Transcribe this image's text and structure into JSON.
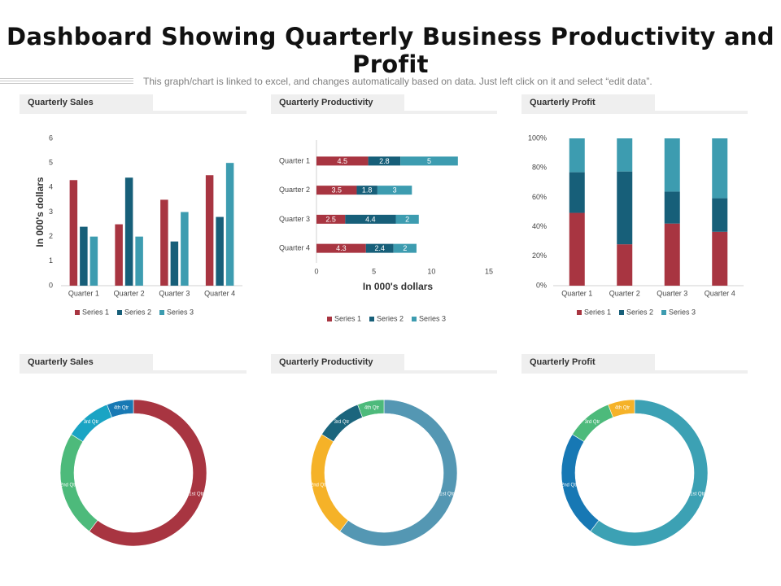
{
  "page": {
    "title": "Dashboard Showing Quarterly Business Productivity and Profit",
    "subtitle": "This graph/chart is linked to excel, and changes automatically based on data. Just left click on it and select “edit data”."
  },
  "colors": {
    "series1": "#a83541",
    "series2": "#175f79",
    "series3": "#3d9cb0"
  },
  "panels": {
    "sales_top": "Quarterly Sales",
    "productivity_top": "Quarterly Productivity",
    "profit_top": "Quarterly Profit",
    "sales_bottom": "Quarterly Sales",
    "productivity_bottom": "Quarterly Productivity",
    "profit_bottom": "Quarterly Profit"
  },
  "chart_data": [
    {
      "id": "sales-bar",
      "type": "bar",
      "title": "Quarterly Sales",
      "categories": [
        "Quarter 1",
        "Quarter 2",
        "Quarter 3",
        "Quarter 4"
      ],
      "series": [
        {
          "name": "Series 1",
          "values": [
            4.3,
            2.5,
            3.5,
            4.5
          ]
        },
        {
          "name": "Series 2",
          "values": [
            2.4,
            4.4,
            1.8,
            2.8
          ]
        },
        {
          "name": "Series 3",
          "values": [
            2,
            2,
            3,
            5
          ]
        }
      ],
      "ylabel": "In 000's dollars",
      "ylim": [
        0,
        6
      ],
      "yticks": [
        "0",
        "1",
        "2",
        "3",
        "4",
        "5",
        "6"
      ],
      "legend": "bottom"
    },
    {
      "id": "productivity-hbar",
      "type": "bar",
      "orientation": "horizontal",
      "stacked": true,
      "title": "Quarterly Productivity",
      "categories": [
        "Quarter 1",
        "Quarter 2",
        "Quarter 3",
        "Quarter 4"
      ],
      "series": [
        {
          "name": "Series 1",
          "values": [
            4.5,
            3.5,
            2.5,
            4.3
          ]
        },
        {
          "name": "Series 2",
          "values": [
            2.8,
            1.8,
            4.4,
            2.4
          ]
        },
        {
          "name": "Series 3",
          "values": [
            5,
            3,
            2,
            2
          ]
        }
      ],
      "xlabel": "In 000's dollars",
      "xlim": [
        0,
        15
      ],
      "xticks": [
        "0",
        "5",
        "10",
        "15"
      ],
      "legend": "bottom"
    },
    {
      "id": "profit-stacked",
      "type": "bar",
      "stacked": true,
      "percent": true,
      "title": "Quarterly Profit",
      "categories": [
        "Quarter 1",
        "Quarter 2",
        "Quarter 3",
        "Quarter 4"
      ],
      "series": [
        {
          "name": "Series 1",
          "values": [
            4.3,
            2.5,
            3.5,
            4.5
          ]
        },
        {
          "name": "Series 2",
          "values": [
            2.4,
            4.4,
            1.8,
            2.8
          ]
        },
        {
          "name": "Series 3",
          "values": [
            2,
            2,
            3,
            5
          ]
        }
      ],
      "ylim": [
        0,
        100
      ],
      "yticks": [
        "0%",
        "20%",
        "40%",
        "60%",
        "80%",
        "100%"
      ],
      "legend": "bottom"
    },
    {
      "id": "sales-donut",
      "type": "pie",
      "donut": true,
      "title": "Quarterly Sales",
      "labels": [
        "1st Qtr",
        "2nd Qtr",
        "3rd Qtr",
        "4th Qtr"
      ],
      "values": [
        8.2,
        3.2,
        1.4,
        0.8
      ],
      "colors": [
        "#a83541",
        "#4dba7b",
        "#1aa4c4",
        "#1879b4"
      ]
    },
    {
      "id": "productivity-donut",
      "type": "pie",
      "donut": true,
      "title": "Quarterly Productivity",
      "labels": [
        "1st Qtr",
        "2nd Qtr",
        "3rd Qtr",
        "4th Qtr"
      ],
      "values": [
        8.2,
        3.2,
        1.4,
        0.8
      ],
      "colors": [
        "#5497b3",
        "#f5b228",
        "#1b657d",
        "#4dba7b"
      ]
    },
    {
      "id": "profit-donut",
      "type": "pie",
      "donut": true,
      "title": "Quarterly Profit",
      "labels": [
        "1st Qtr",
        "2nd Qtr",
        "3rd Qtr",
        "4th Qtr"
      ],
      "values": [
        8.2,
        3.2,
        1.4,
        0.8
      ],
      "colors": [
        "#3ca1b4",
        "#1778b4",
        "#4dba7b",
        "#f5b228"
      ]
    }
  ]
}
